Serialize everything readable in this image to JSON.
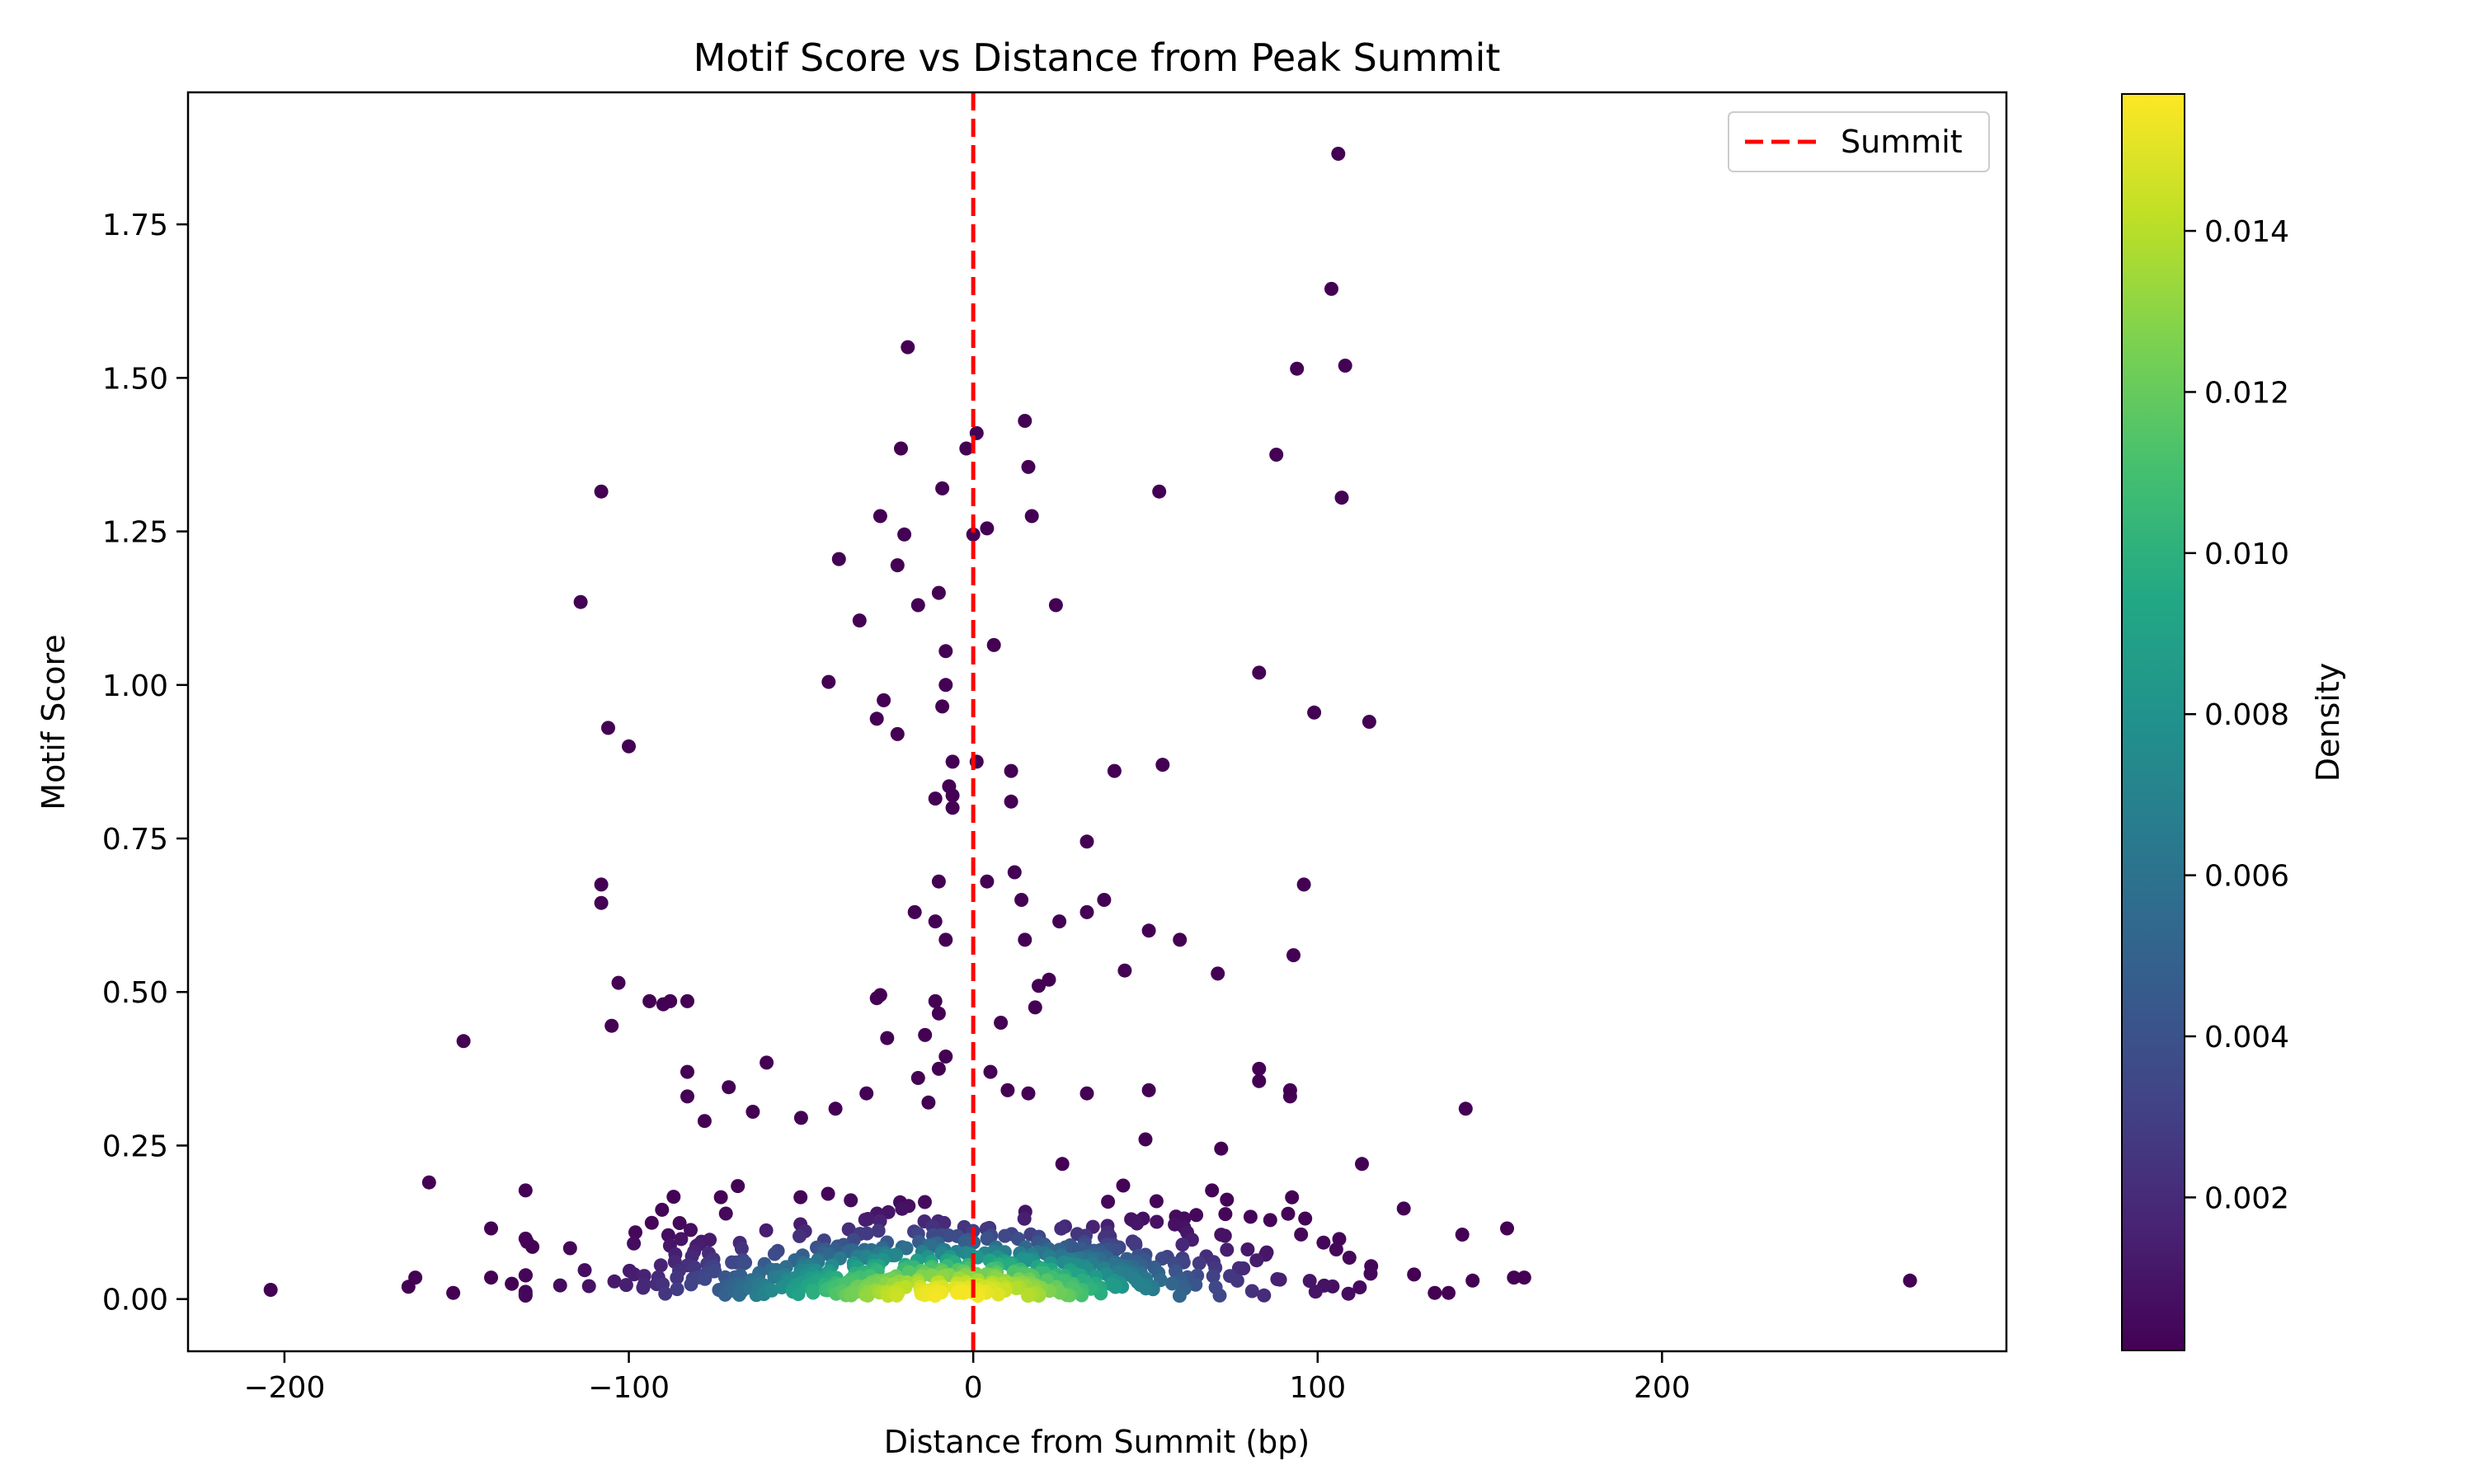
{
  "chart_data": {
    "type": "scatter",
    "title": "Motif Score vs Distance from Peak Summit",
    "xlabel": "Distance from Summit (bp)",
    "ylabel": "Motif Score",
    "xlim": [
      -228,
      300
    ],
    "ylim": [
      -0.085,
      1.965
    ],
    "x_ticks": [
      -200,
      -100,
      0,
      100,
      200
    ],
    "x_tick_labels": [
      "−200",
      "−100",
      "0",
      "100",
      "200"
    ],
    "y_ticks": [
      0.0,
      0.25,
      0.5,
      0.75,
      1.0,
      1.25,
      1.5,
      1.75
    ],
    "y_tick_labels": [
      "0.00",
      "0.25",
      "0.50",
      "0.75",
      "1.00",
      "1.25",
      "1.50",
      "1.75"
    ],
    "grid": false,
    "colormap": "viridis",
    "colorbar": {
      "label": "Density",
      "range": [
        0.0001,
        0.0157
      ],
      "ticks": [
        0.002,
        0.004,
        0.006,
        0.008,
        0.01,
        0.012,
        0.014
      ],
      "tick_labels": [
        "0.002",
        "0.004",
        "0.006",
        "0.008",
        "0.010",
        "0.012",
        "0.014"
      ]
    },
    "reference_line": {
      "x": 0,
      "name": "Summit",
      "color": "#ff0000",
      "style": "dashed"
    },
    "legend": {
      "position": "top-right",
      "entries": [
        "Summit"
      ]
    },
    "outlier_points": [
      [
        -204,
        0.015
      ],
      [
        -164,
        0.02
      ],
      [
        -162,
        0.035
      ],
      [
        -158,
        0.19
      ],
      [
        -151,
        0.01
      ],
      [
        -148,
        0.42
      ],
      [
        -140,
        0.115
      ],
      [
        -140,
        0.035
      ],
      [
        -134,
        0.025
      ],
      [
        -128,
        0.085
      ],
      [
        -114,
        1.135
      ],
      [
        -108,
        1.315
      ],
      [
        -108,
        0.675
      ],
      [
        -108,
        0.645
      ],
      [
        -106,
        0.93
      ],
      [
        -105,
        0.445
      ],
      [
        -103,
        0.515
      ],
      [
        -100,
        0.9
      ],
      [
        -94,
        0.485
      ],
      [
        -90,
        0.48
      ],
      [
        -88,
        0.485
      ],
      [
        -83,
        0.485
      ],
      [
        -83,
        0.37
      ],
      [
        -83,
        0.33
      ],
      [
        -78,
        0.29
      ],
      [
        -71,
        0.345
      ],
      [
        -64,
        0.305
      ],
      [
        -60,
        0.385
      ],
      [
        -50,
        0.295
      ],
      [
        -40,
        0.31
      ],
      [
        -33,
        1.105
      ],
      [
        -39,
        1.205
      ],
      [
        -42,
        1.005
      ],
      [
        -28,
        0.945
      ],
      [
        -26,
        0.975
      ],
      [
        -22,
        0.92
      ],
      [
        -27,
        1.275
      ],
      [
        -22,
        1.195
      ],
      [
        -20,
        1.245
      ],
      [
        -21,
        1.385
      ],
      [
        -19,
        1.55
      ],
      [
        -16,
        1.13
      ],
      [
        -9,
        1.32
      ],
      [
        -10,
        1.15
      ],
      [
        -8,
        1.055
      ],
      [
        -8,
        1.0
      ],
      [
        -9,
        0.965
      ],
      [
        -6,
        0.875
      ],
      [
        -7,
        0.835
      ],
      [
        -6,
        0.82
      ],
      [
        -11,
        0.815
      ],
      [
        -6,
        0.8
      ],
      [
        -10,
        0.68
      ],
      [
        -17,
        0.63
      ],
      [
        -11,
        0.615
      ],
      [
        -8,
        0.585
      ],
      [
        -27,
        0.495
      ],
      [
        -28,
        0.49
      ],
      [
        -11,
        0.485
      ],
      [
        -10,
        0.465
      ],
      [
        -25,
        0.425
      ],
      [
        -14,
        0.43
      ],
      [
        -8,
        0.395
      ],
      [
        -10,
        0.375
      ],
      [
        -16,
        0.36
      ],
      [
        -31,
        0.335
      ],
      [
        -13,
        0.32
      ],
      [
        -2,
        1.385
      ],
      [
        0,
        1.245
      ],
      [
        1,
        1.41
      ],
      [
        4,
        1.255
      ],
      [
        15,
        1.43
      ],
      [
        16,
        1.355
      ],
      [
        17,
        1.275
      ],
      [
        6,
        1.065
      ],
      [
        24,
        1.13
      ],
      [
        1,
        0.875
      ],
      [
        11,
        0.86
      ],
      [
        11,
        0.81
      ],
      [
        12,
        0.695
      ],
      [
        14,
        0.65
      ],
      [
        4,
        0.68
      ],
      [
        15,
        0.585
      ],
      [
        19,
        0.51
      ],
      [
        22,
        0.52
      ],
      [
        18,
        0.475
      ],
      [
        8,
        0.45
      ],
      [
        5,
        0.37
      ],
      [
        10,
        0.34
      ],
      [
        16,
        0.335
      ],
      [
        25,
        0.615
      ],
      [
        33,
        0.63
      ],
      [
        33,
        0.745
      ],
      [
        38,
        0.65
      ],
      [
        41,
        0.86
      ],
      [
        44,
        0.535
      ],
      [
        51,
        0.6
      ],
      [
        55,
        0.87
      ],
      [
        54,
        1.315
      ],
      [
        60,
        0.585
      ],
      [
        71,
        0.53
      ],
      [
        83,
        1.02
      ],
      [
        88,
        1.375
      ],
      [
        94,
        1.515
      ],
      [
        96,
        0.675
      ],
      [
        99,
        0.955
      ],
      [
        104,
        1.645
      ],
      [
        106,
        1.865
      ],
      [
        107,
        1.305
      ],
      [
        108,
        1.52
      ],
      [
        115,
        0.94
      ],
      [
        93,
        0.56
      ],
      [
        83,
        0.355
      ],
      [
        83,
        0.375
      ],
      [
        92,
        0.34
      ],
      [
        92,
        0.33
      ],
      [
        72,
        0.245
      ],
      [
        51,
        0.34
      ],
      [
        33,
        0.335
      ],
      [
        50,
        0.26
      ],
      [
        143,
        0.31
      ],
      [
        142,
        0.105
      ],
      [
        155,
        0.115
      ],
      [
        157,
        0.035
      ],
      [
        160,
        0.035
      ],
      [
        145,
        0.03
      ],
      [
        138,
        0.01
      ],
      [
        134,
        0.01
      ],
      [
        128,
        0.04
      ],
      [
        272,
        0.03
      ]
    ],
    "cluster": {
      "description": "Dense core of points near the baseline; colour by local density",
      "x_range": [
        -130,
        125
      ],
      "y_range": [
        0.0,
        0.22
      ],
      "approx_count": 700
    }
  }
}
